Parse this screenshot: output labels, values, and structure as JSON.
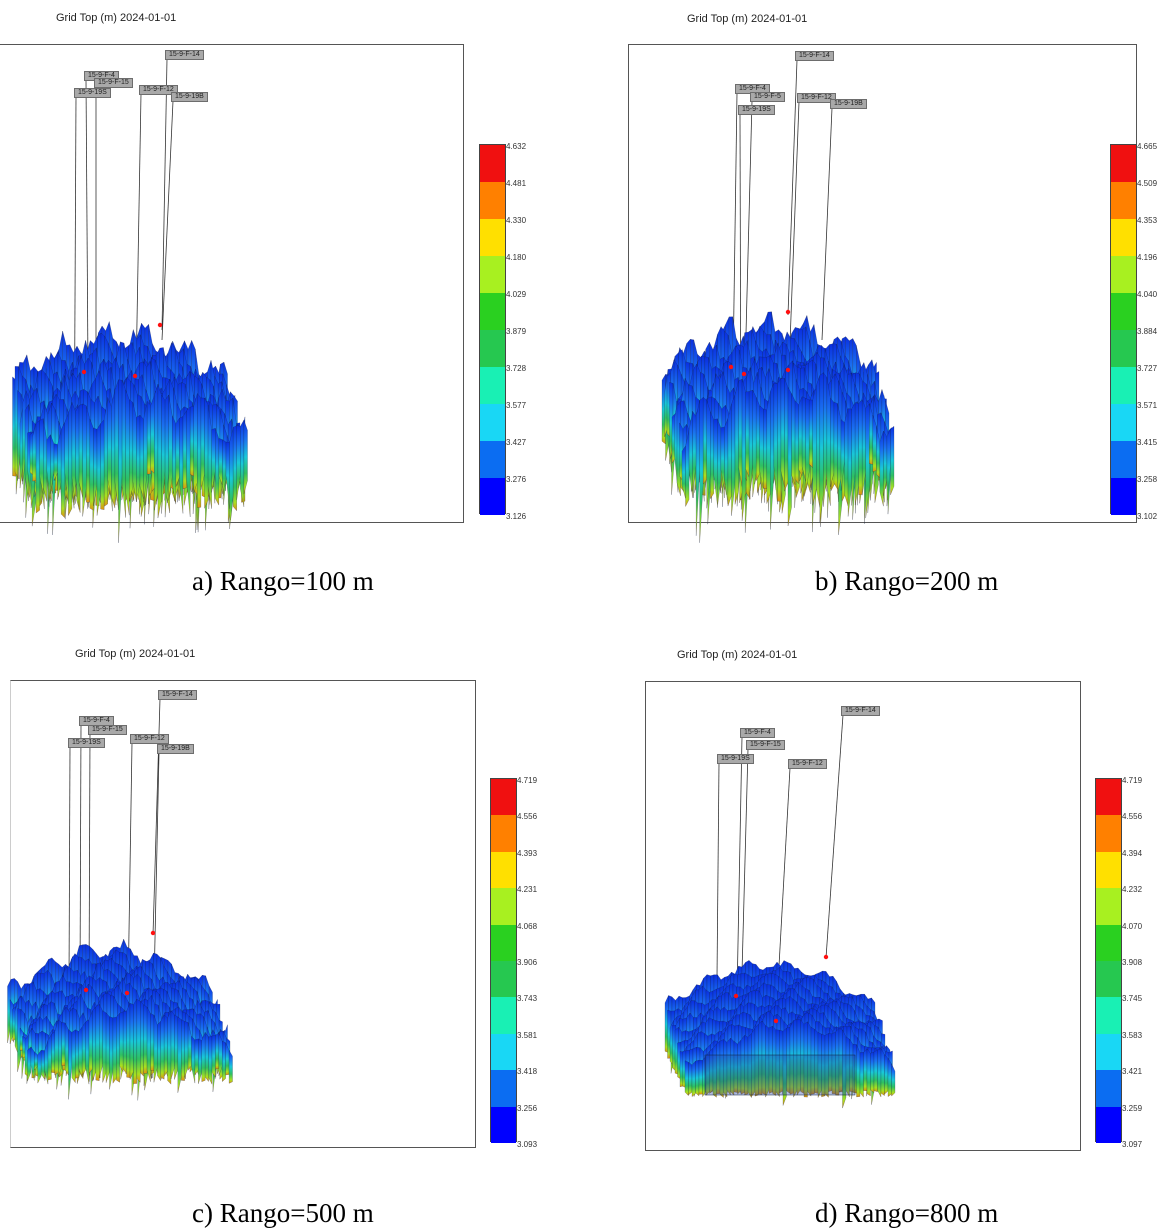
{
  "palette": [
    "#0000ff",
    "#0b6df2",
    "#19d7f5",
    "#19f0b4",
    "#26c850",
    "#2ad020",
    "#a8f020",
    "#ffe000",
    "#ff8000",
    "#f01010"
  ],
  "chart_data": [
    {
      "type": "surface",
      "title": "Grid Top (m) 2024-01-01",
      "caption": "a)  Rango=100 m",
      "wells": [
        "15-9-F-14",
        "15-9-F-4",
        "15-9-F-15",
        "15-9-19S",
        "15-9-F-12",
        "15-9-19B"
      ],
      "colorbar_ticks": [
        "4.632",
        "4.481",
        "4.330",
        "4.180",
        "4.029",
        "3.879",
        "3.728",
        "3.577",
        "3.427",
        "3.276",
        "3.126"
      ],
      "zlim": [
        3.126,
        4.632
      ]
    },
    {
      "type": "surface",
      "title": "Grid Top (m) 2024-01-01",
      "caption": "b)  Rango=200 m",
      "wells": [
        "15-9-F-14",
        "15-9-F-4",
        "15-9-F-5",
        "15-9-19S",
        "15-9-F-12",
        "15-9-19B"
      ],
      "colorbar_ticks": [
        "4.665",
        "4.509",
        "4.353",
        "4.196",
        "4.040",
        "3.884",
        "3.727",
        "3.571",
        "3.415",
        "3.258",
        "3.102"
      ],
      "zlim": [
        3.102,
        4.665
      ]
    },
    {
      "type": "surface",
      "title": "Grid Top (m) 2024-01-01",
      "caption": "c)  Rango=500 m",
      "wells": [
        "15-9-F-14",
        "15-9-F-4",
        "15-9-F-15",
        "15-9-19S",
        "15-9-F-12",
        "15-9-19B"
      ],
      "colorbar_ticks": [
        "4.719",
        "4.556",
        "4.393",
        "4.231",
        "4.068",
        "3.906",
        "3.743",
        "3.581",
        "3.418",
        "3.256",
        "3.093"
      ],
      "zlim": [
        3.093,
        4.719
      ]
    },
    {
      "type": "surface",
      "title": "Grid Top (m) 2024-01-01",
      "caption": "d)  Rango=800 m",
      "wells": [
        "15-9-F-14",
        "15-9-F-4",
        "15-9-F-15",
        "15-9-19S",
        "15-9-F-12"
      ],
      "colorbar_ticks": [
        "4.719",
        "4.556",
        "4.394",
        "4.232",
        "4.070",
        "3.908",
        "3.745",
        "3.583",
        "3.421",
        "3.259",
        "3.097"
      ],
      "zlim": [
        3.097,
        4.719
      ]
    }
  ]
}
